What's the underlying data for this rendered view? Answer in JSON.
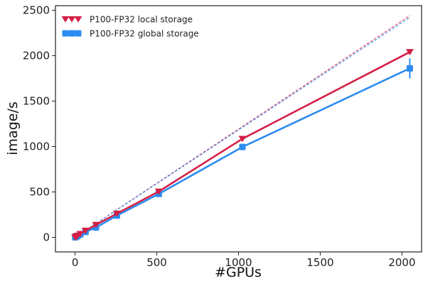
{
  "chart_data": {
    "type": "line",
    "title": "",
    "xlabel": "#GPUs",
    "ylabel": "image/s",
    "xlim": [
      -120,
      2120
    ],
    "ylim": [
      -160,
      2550
    ],
    "xticks": [
      0,
      500,
      1000,
      1500,
      2000
    ],
    "yticks": [
      0,
      500,
      1000,
      1500,
      2000,
      2500
    ],
    "grid": false,
    "legend_position": "top-left",
    "series": [
      {
        "name": "P100-FP32 local storage",
        "color": "#d41e46",
        "marker": "triangle-down",
        "x": [
          1,
          2,
          4,
          8,
          16,
          32,
          64,
          128,
          256,
          512,
          1024,
          2048
        ],
        "values": [
          1.2,
          2.4,
          4.8,
          9.5,
          19,
          38,
          74,
          138,
          262,
          505,
          1085,
          2040
        ],
        "error": [
          0,
          0,
          0,
          0,
          0,
          0,
          0,
          0,
          0,
          0,
          0,
          0
        ]
      },
      {
        "name": "P100-FP32 global storage",
        "color": "#2b8cef",
        "marker": "square",
        "x": [
          1,
          2,
          4,
          8,
          16,
          32,
          64,
          128,
          256,
          512,
          1024,
          2048
        ],
        "values": [
          1.1,
          2.2,
          4.4,
          8.8,
          17,
          33,
          60,
          108,
          240,
          478,
          995,
          1860
        ],
        "error": [
          0,
          0,
          0,
          0,
          0,
          0,
          0,
          0,
          0,
          0,
          25,
          110
        ]
      }
    ],
    "ideal_lines": [
      {
        "color": "#d41e46",
        "style": "dashed",
        "x": [
          1,
          2048
        ],
        "values": [
          1.19,
          2440
        ]
      },
      {
        "color": "#2b8cef",
        "style": "dashed",
        "x": [
          1,
          2048
        ],
        "values": [
          1.18,
          2420
        ]
      }
    ]
  }
}
